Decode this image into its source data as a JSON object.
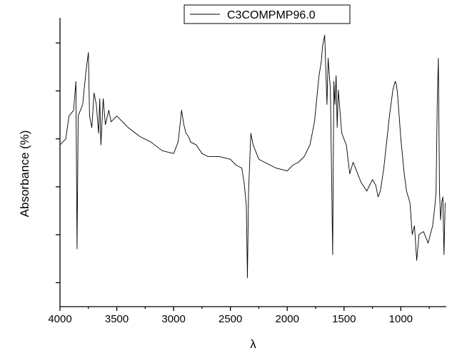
{
  "chart_data": {
    "type": "line",
    "title": "",
    "xlabel": "λ",
    "ylabel": "Absorbance (%)",
    "x_reversed": true,
    "xlim": [
      4000,
      600
    ],
    "ylim": [
      0,
      100
    ],
    "y_ticks_labeled": false,
    "xticks": [
      4000,
      3500,
      3000,
      2500,
      2000,
      1500,
      1000
    ],
    "xtick_labels": [
      "4000",
      "3500",
      "3000",
      "2500",
      "2000",
      "1500",
      "1000"
    ],
    "legend": {
      "position": "top-right",
      "entries": [
        "C3COMPMP96.0"
      ]
    },
    "grid": false,
    "series": [
      {
        "name": "C3COMPMP96.0",
        "color": "#000000",
        "x": [
          4000,
          3950,
          3920,
          3880,
          3860,
          3850,
          3840,
          3800,
          3770,
          3750,
          3740,
          3720,
          3700,
          3680,
          3660,
          3650,
          3640,
          3620,
          3600,
          3570,
          3550,
          3500,
          3400,
          3300,
          3200,
          3100,
          3000,
          2960,
          2930,
          2910,
          2890,
          2870,
          2850,
          2800,
          2750,
          2700,
          2600,
          2500,
          2450,
          2400,
          2380,
          2360,
          2350,
          2340,
          2320,
          2300,
          2250,
          2200,
          2100,
          2000,
          1950,
          1900,
          1850,
          1800,
          1760,
          1740,
          1720,
          1700,
          1690,
          1670,
          1660,
          1650,
          1640,
          1620,
          1600,
          1590,
          1580,
          1570,
          1560,
          1550,
          1520,
          1500,
          1480,
          1450,
          1420,
          1400,
          1350,
          1300,
          1250,
          1220,
          1200,
          1180,
          1150,
          1100,
          1070,
          1050,
          1040,
          1030,
          1000,
          970,
          950,
          920,
          900,
          880,
          860,
          840,
          800,
          760,
          740,
          720,
          700,
          690,
          680,
          670,
          660,
          650,
          640,
          630,
          620,
          610
        ],
        "values": [
          56,
          58,
          66,
          68,
          78,
          20,
          66,
          70,
          82,
          88,
          66,
          62,
          74,
          70,
          60,
          72,
          56,
          72,
          63,
          68,
          64,
          66,
          62,
          59,
          57,
          54,
          53,
          57,
          68,
          63,
          60,
          59,
          57,
          56,
          53,
          52,
          52,
          51,
          49,
          48,
          43,
          35,
          10,
          40,
          60,
          56,
          51,
          50,
          48,
          47,
          49,
          50,
          52,
          56,
          64,
          72,
          80,
          85,
          90,
          94,
          82,
          70,
          86,
          75,
          18,
          78,
          70,
          80,
          62,
          75,
          60,
          58,
          56,
          46,
          50,
          48,
          43,
          40,
          44,
          42,
          38,
          40,
          48,
          66,
          75,
          78,
          77,
          74,
          58,
          46,
          40,
          36,
          25,
          28,
          16,
          25,
          26,
          22,
          25,
          28,
          35,
          40,
          70,
          86,
          40,
          30,
          36,
          38,
          18,
          36
        ]
      }
    ]
  }
}
